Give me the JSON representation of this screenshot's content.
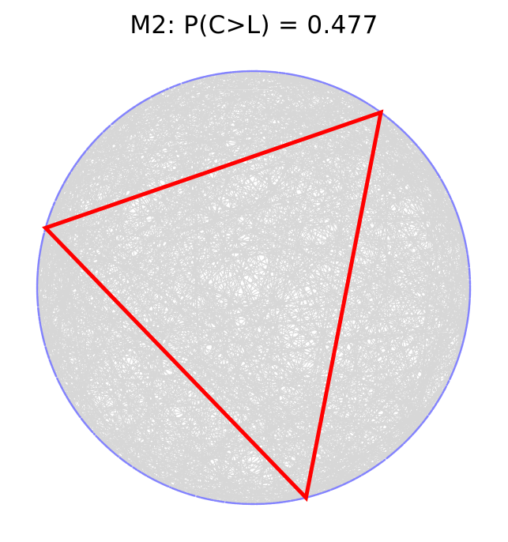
{
  "chart_data": {
    "type": "scatter",
    "title": "M2: P(C>L) = 0.477",
    "description_free": true,
    "circle": {
      "center": [
        0,
        0
      ],
      "radius": 1
    },
    "axes_visible": false,
    "grid": false,
    "random_chords": {
      "count": 1500,
      "color": "#8c8c8c",
      "endpoint_color": "#0000ff"
    },
    "inscribed_triangle": {
      "color": "#ff0000",
      "vertex_angles_deg": [
        54,
        164,
        284
      ]
    },
    "probability": 0.477
  }
}
